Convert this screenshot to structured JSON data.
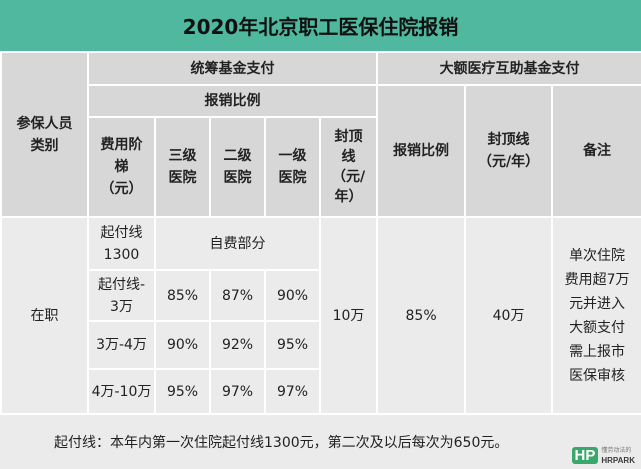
{
  "title": "2020年北京职工医保住院报销",
  "headers": {
    "category": "参保人员\n类别",
    "pooled_fund": "统筹基金支付",
    "major_fund": "大额医疗互助基金支付",
    "reimb_ratio": "报销比例",
    "fee_tier": "费用阶\n梯\n（元）",
    "level3": "三级\n医院",
    "level2": "二级\n医院",
    "level1": "一级\n医院",
    "cap": "封顶\n线\n（元/\n年）",
    "major_ratio": "报销比例",
    "major_cap": "封顶线\n（元/年）",
    "note": "备注"
  },
  "body": {
    "category": "在职",
    "rows": [
      {
        "tier": "起付线\n1300",
        "merged": "自费部分"
      },
      {
        "tier": "起付线-\n3万",
        "l3": "85%",
        "l2": "87%",
        "l1": "90%"
      },
      {
        "tier": "3万-4万",
        "l3": "90%",
        "l2": "92%",
        "l1": "95%"
      },
      {
        "tier": "4万-10万",
        "l3": "95%",
        "l2": "97%",
        "l1": "97%"
      }
    ],
    "cap": "10万",
    "major_ratio": "85%",
    "major_cap": "40万",
    "note": "单次住院\n费用超7万\n元并进入\n大额支付\n需上报市\n医保审核"
  },
  "footer": "起付线：本年内第一次住院起付线1300元，第二次及以后每次为650元。",
  "logo": {
    "mark": "HP",
    "name": "HRPARK",
    "tagline": "懂劳动法的"
  },
  "colors": {
    "title_bg": "#4fb89e",
    "header_bg": "#d7d7d7",
    "body_bg": "#ebebeb"
  }
}
